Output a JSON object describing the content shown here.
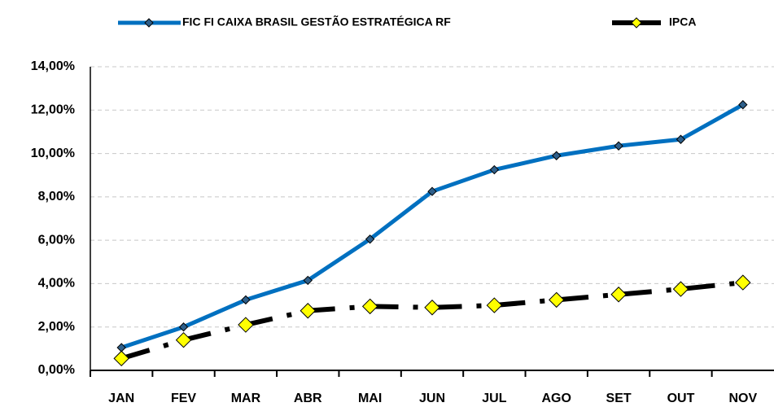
{
  "chart_data": {
    "type": "line",
    "categories": [
      "JAN",
      "FEV",
      "MAR",
      "ABR",
      "MAI",
      "JUN",
      "JUL",
      "AGO",
      "SET",
      "OUT",
      "NOV"
    ],
    "series": [
      {
        "name": "FIC FI CAIXA BRASIL GESTÃO ESTRATÉGICA RF",
        "color": "#0070c0",
        "values": [
          1.05,
          2.0,
          3.25,
          4.15,
          6.05,
          8.25,
          9.25,
          9.9,
          10.35,
          10.65,
          12.25
        ]
      },
      {
        "name": "IPCA",
        "color": "#000000",
        "values": [
          0.55,
          1.4,
          2.1,
          2.75,
          2.95,
          2.9,
          3.0,
          3.25,
          3.5,
          3.75,
          4.05
        ]
      }
    ],
    "ylim": [
      0,
      14
    ],
    "yticks": [
      {
        "value": 0,
        "label": "0,00%"
      },
      {
        "value": 2,
        "label": "2,00%"
      },
      {
        "value": 4,
        "label": "4,00%"
      },
      {
        "value": 6,
        "label": "6,00%"
      },
      {
        "value": 8,
        "label": "8,00%"
      },
      {
        "value": 10,
        "label": "10,00%"
      },
      {
        "value": 12,
        "label": "12,00%"
      },
      {
        "value": 14,
        "label": "14,00%"
      }
    ],
    "grid": true
  }
}
